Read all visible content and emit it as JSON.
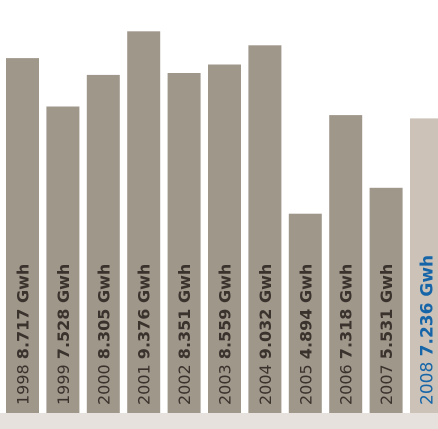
{
  "chart_data": {
    "type": "bar",
    "title": "",
    "xlabel": "",
    "ylabel": "",
    "categories": [
      "1998",
      "1999",
      "2000",
      "2001",
      "2002",
      "2003",
      "2004",
      "2005",
      "2006",
      "2007",
      "2008"
    ],
    "values": [
      8.717,
      7.528,
      8.305,
      9.376,
      8.351,
      8.559,
      9.032,
      4.894,
      7.318,
      5.531,
      7.236
    ],
    "value_labels": [
      "8.717",
      "7.528",
      "8.305",
      "9.376",
      "8.351",
      "8.559",
      "9.032",
      "4.894",
      "7.318",
      "5.531",
      "7.236"
    ],
    "unit": "Gwh",
    "ylim": [
      0,
      9.8
    ],
    "grid": false,
    "highlight_index": 10,
    "colors": {
      "bar": "#a0978b",
      "bar_highlight": "#ccc2b8",
      "label": "#3a332d",
      "label_highlight": "#1565a8",
      "baseline": "#e6e1dc"
    }
  }
}
